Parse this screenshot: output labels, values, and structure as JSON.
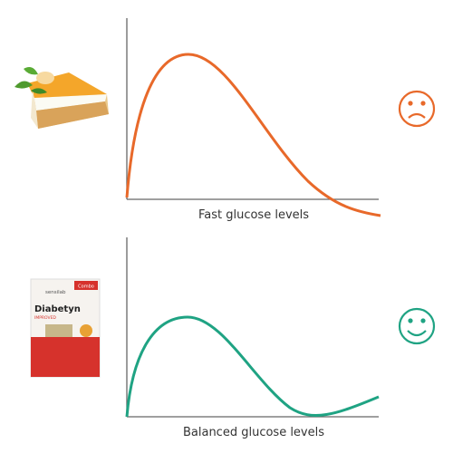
{
  "panels": [
    {
      "label": "Fast glucose levels"
    },
    {
      "label": "Balanced glucose levels",
      "product": {
        "brand": "sensilab",
        "name": "Diabetyn",
        "tag": "IMPROVED",
        "badge": "Combo"
      }
    }
  ]
}
